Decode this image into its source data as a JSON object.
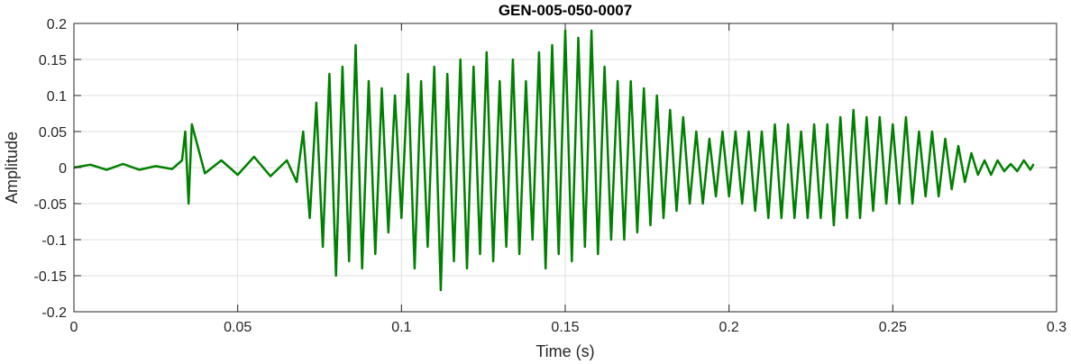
{
  "chart_data": {
    "type": "line",
    "title": "GEN-005-050-0007",
    "xlabel": "Time (s)",
    "ylabel": "Amplitude",
    "xlim": [
      0,
      0.3
    ],
    "ylim": [
      -0.2,
      0.2
    ],
    "xticks": [
      0,
      0.05,
      0.1,
      0.15,
      0.2,
      0.25,
      0.3
    ],
    "xtick_labels": [
      "0",
      "0.05",
      "0.1",
      "0.15",
      "0.2",
      "0.25",
      "0.3"
    ],
    "yticks": [
      -0.2,
      -0.15,
      -0.1,
      -0.05,
      0,
      0.05,
      0.1,
      0.15,
      0.2
    ],
    "ytick_labels": [
      "-0.2",
      "-0.15",
      "-0.1",
      "-0.05",
      "0",
      "0.05",
      "0.1",
      "0.15",
      "0.2"
    ],
    "grid": true,
    "line_color": "#008000",
    "series": [
      {
        "x": [
          0,
          0.005,
          0.01,
          0.015,
          0.02,
          0.025,
          0.03,
          0.033,
          0.034,
          0.035,
          0.036,
          0.04,
          0.045,
          0.05,
          0.055,
          0.06,
          0.065,
          0.068,
          0.07,
          0.072,
          0.074,
          0.076,
          0.078,
          0.08,
          0.082,
          0.084,
          0.086,
          0.088,
          0.09,
          0.092,
          0.094,
          0.096,
          0.098,
          0.1,
          0.102,
          0.104,
          0.106,
          0.108,
          0.11,
          0.112,
          0.114,
          0.116,
          0.118,
          0.12,
          0.122,
          0.124,
          0.126,
          0.128,
          0.13,
          0.132,
          0.134,
          0.136,
          0.138,
          0.14,
          0.142,
          0.144,
          0.146,
          0.148,
          0.15,
          0.152,
          0.154,
          0.156,
          0.158,
          0.16,
          0.162,
          0.164,
          0.166,
          0.168,
          0.17,
          0.172,
          0.174,
          0.176,
          0.178,
          0.18,
          0.182,
          0.184,
          0.186,
          0.188,
          0.19,
          0.192,
          0.194,
          0.196,
          0.198,
          0.2,
          0.202,
          0.204,
          0.206,
          0.208,
          0.21,
          0.212,
          0.214,
          0.216,
          0.218,
          0.22,
          0.222,
          0.224,
          0.226,
          0.228,
          0.23,
          0.232,
          0.234,
          0.236,
          0.238,
          0.24,
          0.242,
          0.244,
          0.246,
          0.248,
          0.25,
          0.252,
          0.254,
          0.256,
          0.258,
          0.26,
          0.262,
          0.264,
          0.266,
          0.268,
          0.27,
          0.272,
          0.274,
          0.276,
          0.278,
          0.28,
          0.282,
          0.284,
          0.286,
          0.288,
          0.29,
          0.292,
          0.293
        ],
        "y": [
          0,
          0.004,
          -0.003,
          0.005,
          -0.003,
          0.002,
          -0.002,
          0.01,
          0.05,
          -0.05,
          0.06,
          -0.008,
          0.01,
          -0.01,
          0.015,
          -0.012,
          0.01,
          -0.02,
          0.05,
          -0.07,
          0.09,
          -0.11,
          0.13,
          -0.15,
          0.14,
          -0.13,
          0.17,
          -0.14,
          0.12,
          -0.12,
          0.11,
          -0.09,
          0.1,
          -0.07,
          0.13,
          -0.14,
          0.12,
          -0.11,
          0.14,
          -0.17,
          0.13,
          -0.13,
          0.15,
          -0.14,
          0.14,
          -0.12,
          0.16,
          -0.13,
          0.12,
          -0.11,
          0.15,
          -0.12,
          0.12,
          -0.1,
          0.16,
          -0.14,
          0.17,
          -0.12,
          0.19,
          -0.13,
          0.18,
          -0.11,
          0.19,
          -0.12,
          0.14,
          -0.1,
          0.12,
          -0.1,
          0.12,
          -0.09,
          0.11,
          -0.08,
          0.1,
          -0.07,
          0.08,
          -0.06,
          0.07,
          -0.05,
          0.05,
          -0.05,
          0.04,
          -0.04,
          0.05,
          -0.04,
          0.05,
          -0.05,
          0.05,
          -0.06,
          0.05,
          -0.07,
          0.06,
          -0.07,
          0.06,
          -0.07,
          0.05,
          -0.07,
          0.06,
          -0.07,
          0.06,
          -0.08,
          0.07,
          -0.07,
          0.08,
          -0.07,
          0.07,
          -0.06,
          0.07,
          -0.05,
          0.06,
          -0.05,
          0.07,
          -0.05,
          0.05,
          -0.04,
          0.05,
          -0.04,
          0.04,
          -0.03,
          0.03,
          -0.02,
          0.02,
          -0.01,
          0.01,
          -0.01,
          0.01,
          -0.005,
          0.005,
          -0.005,
          0.01,
          -0.003,
          0.005
        ]
      }
    ]
  }
}
